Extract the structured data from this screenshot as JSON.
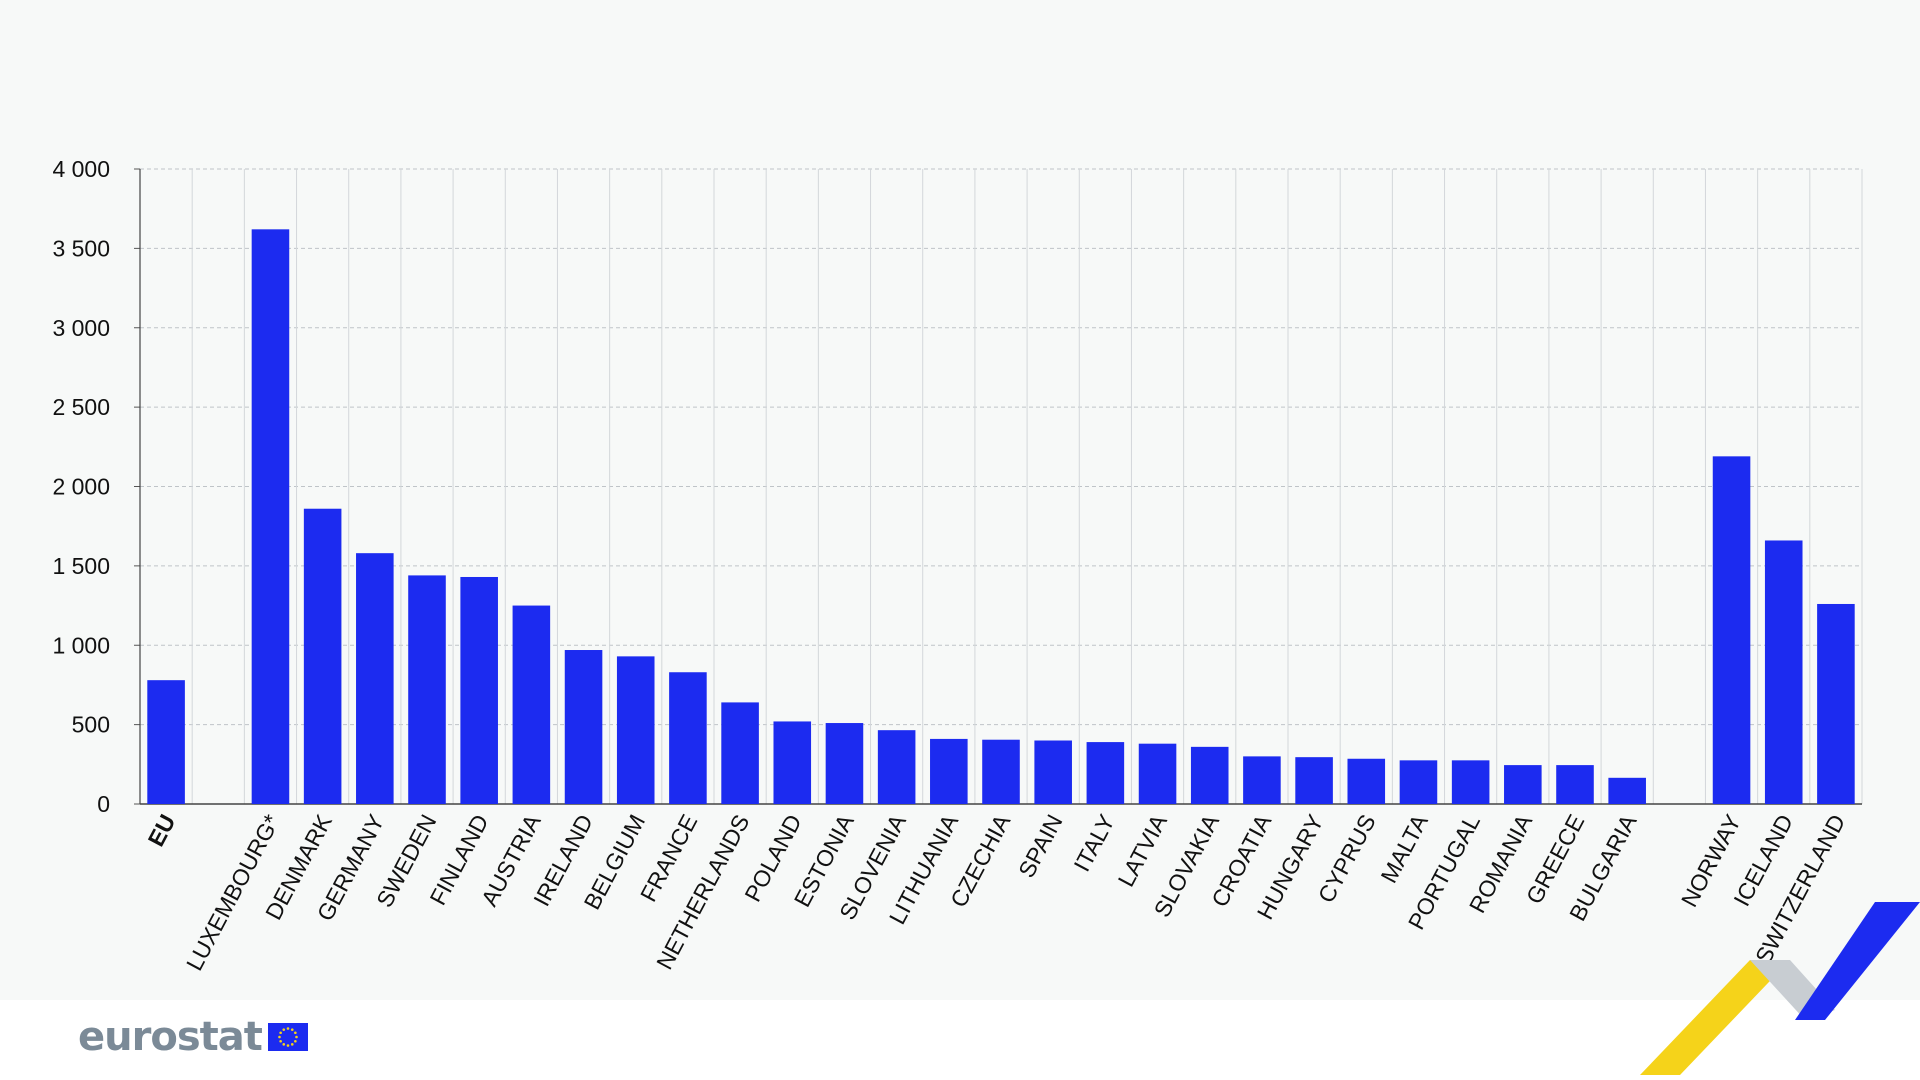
{
  "chart_data": {
    "type": "bar",
    "title": "",
    "xlabel": "",
    "ylabel": "",
    "ylim": [
      0,
      4000
    ],
    "yticks": [
      0,
      500,
      1000,
      1500,
      2000,
      2500,
      3000,
      3500,
      4000
    ],
    "ytick_labels": [
      "0",
      "500",
      "1 000",
      "1 500",
      "2 000",
      "2 500",
      "3 000",
      "3 500",
      "4 000"
    ],
    "grid": true,
    "groups": [
      {
        "categories": [
          "EU"
        ],
        "values": [
          780
        ],
        "bold": true
      },
      {
        "categories": [
          "",
          "LUXEMBOURG*",
          "DENMARK",
          "GERMANY",
          "SWEDEN",
          "FINLAND",
          "AUSTRIA",
          "IRELAND",
          "BELGIUM",
          "FRANCE",
          "NETHERLANDS",
          "POLAND",
          "ESTONIA",
          "SLOVENIA",
          "LITHUANIA",
          "CZECHIA",
          "SPAIN",
          "ITALY",
          "LATVIA",
          "SLOVAKIA",
          "CROATIA",
          "HUNGARY",
          "CYPRUS",
          "MALTA",
          "PORTUGAL",
          "ROMANIA",
          "GREECE",
          "BULGARIA"
        ],
        "values": [
          null,
          3620,
          1860,
          1580,
          1440,
          1430,
          1250,
          970,
          930,
          830,
          640,
          520,
          510,
          465,
          410,
          405,
          400,
          390,
          380,
          360,
          300,
          295,
          285,
          275,
          275,
          245,
          245,
          165
        ]
      },
      {
        "categories": [
          "",
          "NORWAY",
          "ICELAND",
          "SWITZERLAND"
        ],
        "values": [
          null,
          2190,
          1660,
          1260
        ]
      }
    ],
    "bar_color": "#1c2bf0"
  },
  "branding": {
    "logo_text": "eurostat",
    "flag_icon": "eu-flag-icon",
    "ribbon_icon": "ribbon-decoration-icon",
    "ribbon_colors": [
      "#f5d31a",
      "#c8cdd2",
      "#1c2bf0"
    ]
  }
}
